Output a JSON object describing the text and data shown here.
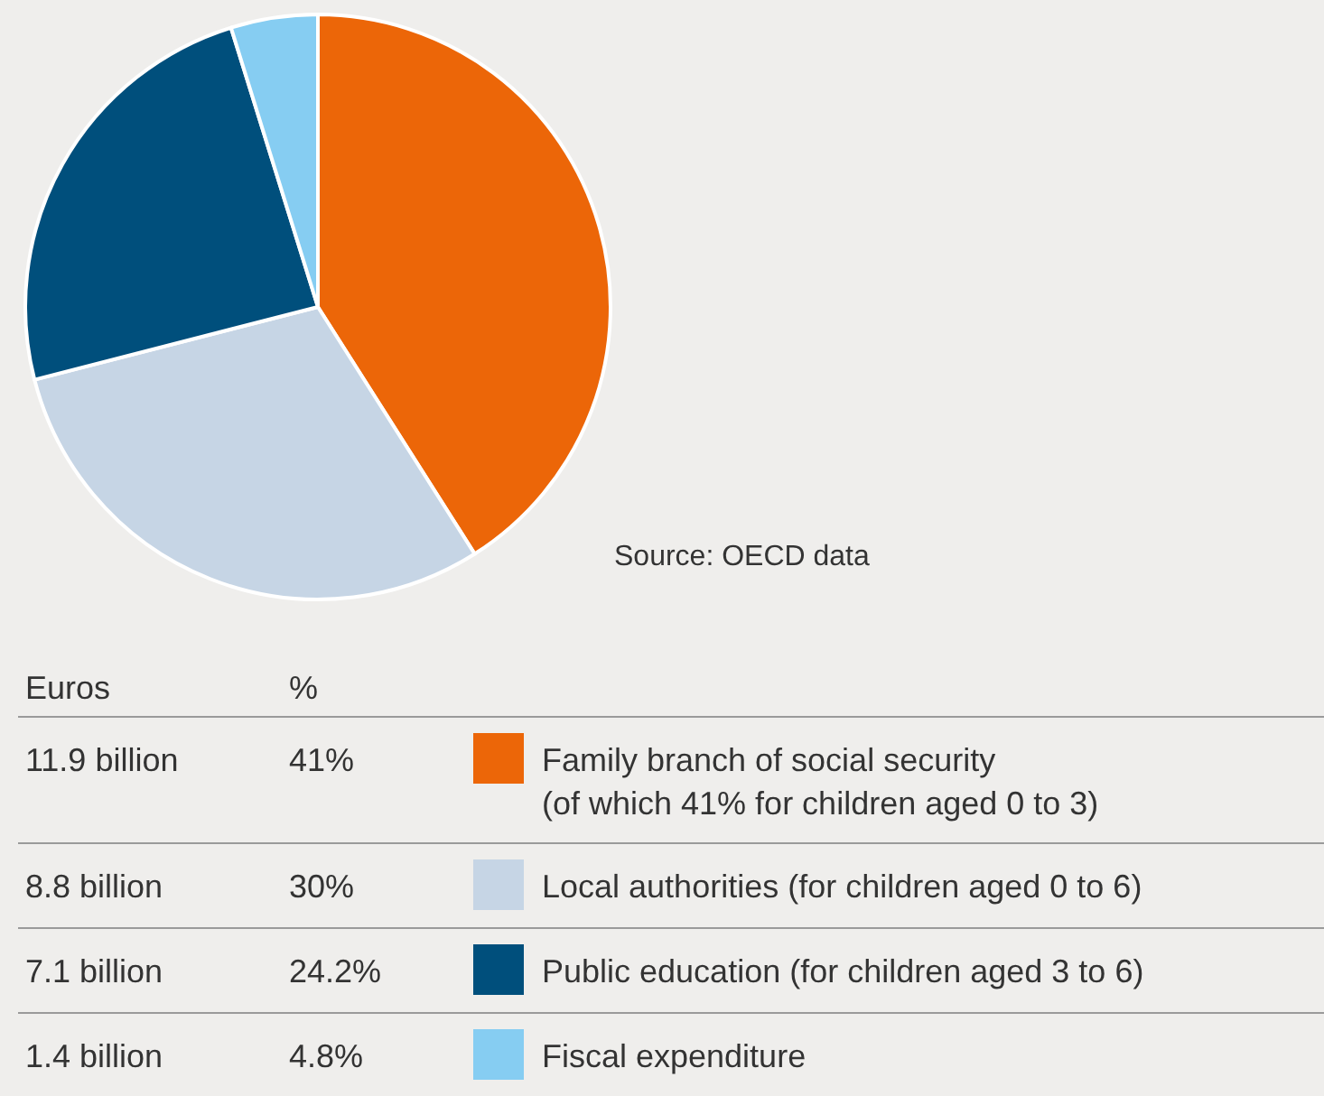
{
  "chart_data": {
    "type": "pie",
    "categories": [
      "Family branch of social security\n(of which 41% for children aged 0 to 3)",
      "Local authorities (for children aged 0 to 6)",
      "Public education (for children aged 3 to 6)",
      "Fiscal expenditure"
    ],
    "values": [
      41,
      30,
      24.2,
      4.8
    ],
    "colors": [
      "#ec6608",
      "#c6d5e5",
      "#004f7c",
      "#86cdf2"
    ],
    "legend": "bottom",
    "annotations": [
      "Source: OECD data",
      "Euros",
      "%",
      "11.9 billion",
      "8.8 billion",
      "7.1 billion",
      "1.4 billion",
      "41%",
      "30%",
      "24.2%",
      "4.8%"
    ]
  }
}
